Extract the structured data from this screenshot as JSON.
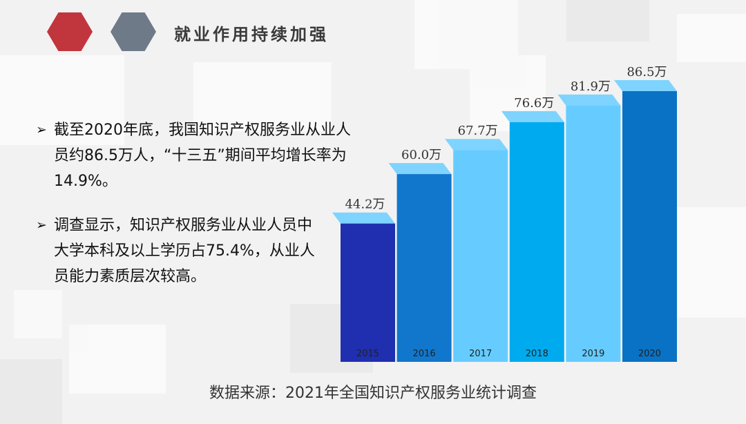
{
  "header": {
    "title": "就业作用持续加强"
  },
  "bullets": [
    {
      "arrow": "➢",
      "text": "截至2020年底，我国知识产权服务业从业人员约86.5万人，“十三五”期间平均增长率为14.9%。"
    },
    {
      "arrow": "➢",
      "text": "调查显示，知识产权服务业从业人员中大学本科及以上学历占75.4%，从业人员能力素质层次较高。"
    }
  ],
  "footer": {
    "source": "数据来源：2021年全国知识产权服务业统计调查"
  },
  "chart_data": {
    "type": "bar",
    "categories": [
      "2015",
      "2016",
      "2017",
      "2018",
      "2019",
      "2020"
    ],
    "values": [
      44.2,
      60.0,
      67.7,
      76.6,
      81.9,
      86.5
    ],
    "value_labels": [
      "44.2万",
      "60.0万",
      "67.7万",
      "76.6万",
      "81.9万",
      "86.5万"
    ],
    "colors": [
      "#1f2fb0",
      "#1177cc",
      "#66ccff",
      "#00aaee",
      "#66ccff",
      "#0a72c4"
    ],
    "ylim": [
      0,
      86.5
    ]
  }
}
